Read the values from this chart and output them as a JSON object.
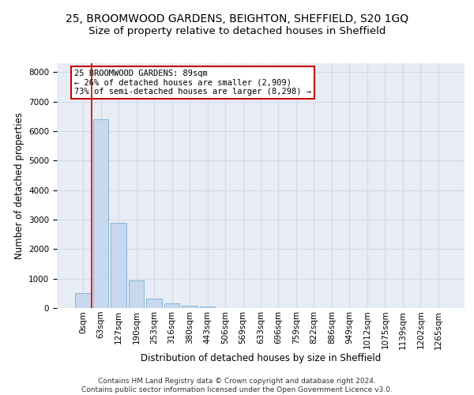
{
  "title1": "25, BROOMWOOD GARDENS, BEIGHTON, SHEFFIELD, S20 1GQ",
  "title2": "Size of property relative to detached houses in Sheffield",
  "xlabel": "Distribution of detached houses by size in Sheffield",
  "ylabel": "Number of detached properties",
  "bar_values": [
    500,
    6400,
    2900,
    950,
    330,
    150,
    90,
    65,
    0,
    0,
    0,
    0,
    0,
    0,
    0,
    0,
    0,
    0,
    0,
    0,
    0
  ],
  "categories": [
    "0sqm",
    "63sqm",
    "127sqm",
    "190sqm",
    "253sqm",
    "316sqm",
    "380sqm",
    "443sqm",
    "506sqm",
    "569sqm",
    "633sqm",
    "696sqm",
    "759sqm",
    "822sqm",
    "886sqm",
    "949sqm",
    "1012sqm",
    "1075sqm",
    "1139sqm",
    "1202sqm",
    "1265sqm"
  ],
  "bar_color": "#c8d8ee",
  "bar_edge_color": "#7aaed4",
  "property_line_x": 0.5,
  "annotation_text": "25 BROOMWOOD GARDENS: 89sqm\n← 26% of detached houses are smaller (2,909)\n73% of semi-detached houses are larger (8,298) →",
  "annotation_box_color": "#ffffff",
  "annotation_box_edge_color": "#cc0000",
  "property_line_color": "#cc0000",
  "ylim_max": 8300,
  "yticks": [
    0,
    1000,
    2000,
    3000,
    4000,
    5000,
    6000,
    7000,
    8000
  ],
  "grid_color": "#d0d8e8",
  "bg_color": "#e8edf5",
  "footer": "Contains HM Land Registry data © Crown copyright and database right 2024.\nContains public sector information licensed under the Open Government Licence v3.0.",
  "title1_fontsize": 10,
  "title2_fontsize": 9.5,
  "tick_fontsize": 7.5,
  "ylabel_fontsize": 8.5,
  "xlabel_fontsize": 8.5,
  "annotation_fontsize": 7.5,
  "footer_fontsize": 6.5
}
